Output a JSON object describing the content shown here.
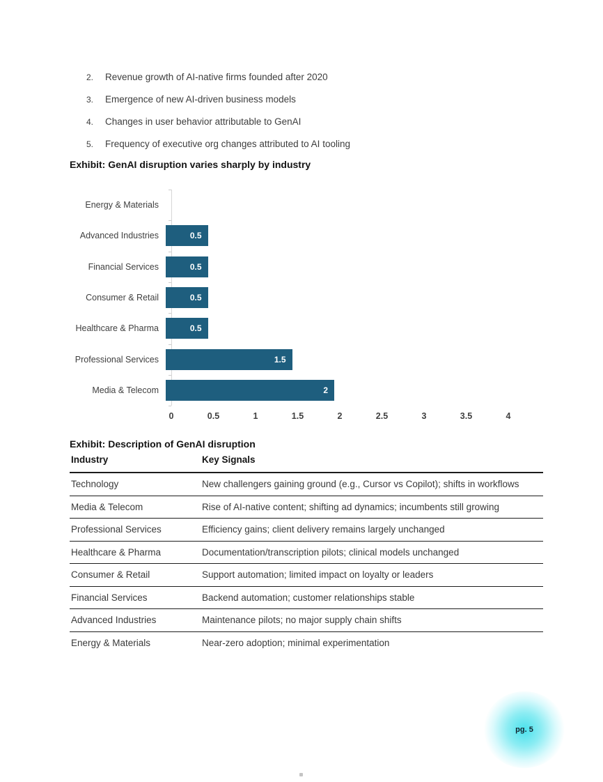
{
  "list": {
    "items": [
      {
        "num": "2.",
        "text": "Revenue growth of AI-native firms founded after 2020"
      },
      {
        "num": "3.",
        "text": "Emergence of new AI-driven business models"
      },
      {
        "num": "4.",
        "text": "Changes in user behavior attributable to GenAI"
      },
      {
        "num": "5.",
        "text": "Frequency of executive org changes attributed to AI tooling"
      }
    ]
  },
  "exhibit1_title": "Exhibit: GenAI disruption varies sharply by industry",
  "exhibit2_title": "Exhibit: Description of GenAI disruption",
  "chart_data": {
    "type": "bar",
    "orientation": "horizontal",
    "title": "Exhibit: GenAI disruption varies sharply by industry",
    "categories": [
      "Energy & Materials",
      "Advanced Industries",
      "Financial Services",
      "Consumer & Retail",
      "Healthcare & Pharma",
      "Professional Services",
      "Media & Telecom"
    ],
    "values": [
      0,
      0.5,
      0.5,
      0.5,
      0.5,
      1.5,
      2
    ],
    "xticks": [
      0,
      0.5,
      1,
      1.5,
      2,
      2.5,
      3,
      3.5,
      4
    ],
    "xlim": [
      0,
      4
    ],
    "grid": false,
    "legend": false,
    "bar_color": "#1e5e7e",
    "value_label_color": "#ffffff",
    "axis_line_color": "#d6d6d6"
  },
  "table": {
    "headers": [
      "Industry",
      "Key Signals"
    ],
    "rows": [
      [
        "Technology",
        "New challengers gaining ground (e.g., Cursor vs Copilot); shifts in workflows"
      ],
      [
        "Media & Telecom",
        "Rise of AI-native content; shifting ad dynamics; incumbents still growing"
      ],
      [
        "Professional Services",
        "Efficiency gains; client delivery remains largely unchanged"
      ],
      [
        "Healthcare & Pharma",
        "Documentation/transcription pilots; clinical models unchanged"
      ],
      [
        "Consumer & Retail",
        "Support automation; limited impact on loyalty or leaders"
      ],
      [
        "Financial Services",
        "Backend automation; customer relationships stable"
      ],
      [
        "Advanced Industries",
        "Maintenance pilots; no major supply chain shifts"
      ],
      [
        "Energy & Materials",
        "Near-zero adoption; minimal experimentation"
      ]
    ]
  },
  "footer": {
    "page_badge": "pg. 5",
    "badge_glow_color": "#40e0eb"
  }
}
